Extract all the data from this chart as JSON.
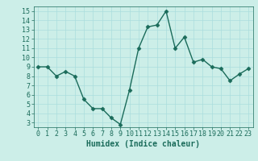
{
  "x": [
    0,
    1,
    2,
    3,
    4,
    5,
    6,
    7,
    8,
    9,
    10,
    11,
    12,
    13,
    14,
    15,
    16,
    17,
    18,
    19,
    20,
    21,
    22,
    23
  ],
  "y": [
    9,
    9,
    8,
    8.5,
    8,
    5.5,
    4.5,
    4.5,
    3.5,
    2.8,
    6.5,
    11,
    13.3,
    13.5,
    15,
    11,
    12.2,
    9.5,
    9.8,
    9,
    8.8,
    7.5,
    8.2,
    8.8
  ],
  "line_color": "#1a6b5a",
  "marker_color": "#1a6b5a",
  "bg_color": "#cceee8",
  "grid_color": "#aadddd",
  "xlabel": "Humidex (Indice chaleur)",
  "xlim": [
    -0.5,
    23.5
  ],
  "ylim": [
    2.5,
    15.5
  ],
  "yticks": [
    3,
    4,
    5,
    6,
    7,
    8,
    9,
    10,
    11,
    12,
    13,
    14,
    15
  ],
  "xticks": [
    0,
    1,
    2,
    3,
    4,
    5,
    6,
    7,
    8,
    9,
    10,
    11,
    12,
    13,
    14,
    15,
    16,
    17,
    18,
    19,
    20,
    21,
    22,
    23
  ],
  "tick_color": "#1a6b5a",
  "label_color": "#1a6b5a",
  "font_size": 6,
  "xlabel_font_size": 7,
  "marker_size": 2.5,
  "line_width": 1.0
}
